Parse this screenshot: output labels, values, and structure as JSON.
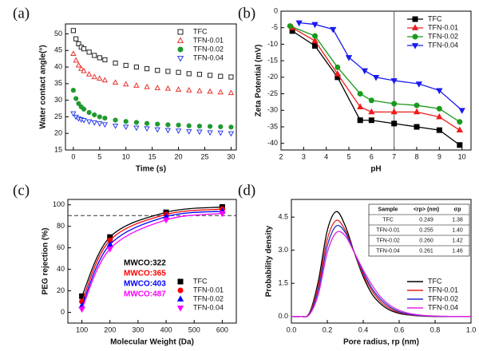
{
  "chart_data": [
    {
      "type": "scatter",
      "label": "(a)",
      "xlabel": "Time (s)",
      "ylabel": "Water contact angle(°)",
      "xlim": [
        -1.5,
        31
      ],
      "xticks": [
        0,
        5,
        10,
        15,
        20,
        25,
        30
      ],
      "ylim": [
        15,
        53
      ],
      "yticks": [
        15,
        20,
        25,
        30,
        35,
        40,
        45,
        50
      ],
      "legend": "upper right",
      "x": [
        0,
        0.5,
        1,
        1.5,
        2,
        3,
        4,
        5,
        6,
        8,
        10,
        12,
        14,
        16,
        18,
        20,
        22,
        24,
        26,
        28,
        30
      ],
      "series": [
        {
          "name": "TFC",
          "color": "#222222",
          "marker": "square-open",
          "values": [
            51,
            48.5,
            47,
            46,
            45.5,
            44.5,
            43.5,
            42.8,
            42.2,
            41.2,
            40.5,
            40,
            39.5,
            39,
            38.7,
            38.4,
            38,
            37.8,
            37.5,
            37.2,
            37
          ]
        },
        {
          "name": "TFN-0.01",
          "color": "#e8322b",
          "marker": "triangle-open",
          "values": [
            44,
            42,
            40.5,
            39.5,
            38.8,
            37.8,
            37,
            36.5,
            36,
            35.3,
            34.8,
            34.4,
            34,
            33.7,
            33.5,
            33.2,
            33,
            32.8,
            32.6,
            32.4,
            32.2
          ]
        },
        {
          "name": "TFN-0.02",
          "color": "#1f9a2e",
          "marker": "circle",
          "values": [
            33,
            30.5,
            29,
            28,
            27.3,
            26.3,
            25.6,
            25,
            24.6,
            24,
            23.6,
            23.3,
            23,
            22.8,
            22.6,
            22.5,
            22.3,
            22.2,
            22.1,
            22,
            21.9
          ]
        },
        {
          "name": "TFN-0.04",
          "color": "#2b3ee6",
          "marker": "triangle-down-open",
          "values": [
            26,
            25,
            24.5,
            24.2,
            24,
            23.6,
            23.3,
            23,
            22.7,
            22.3,
            22,
            21.7,
            21.5,
            21.2,
            21,
            20.8,
            20.6,
            20.5,
            20.3,
            20.2,
            20
          ]
        }
      ]
    },
    {
      "type": "line",
      "label": "(b)",
      "xlabel": "pH",
      "ylabel": "Zeta Potential (mV)",
      "xlim": [
        2,
        10.4
      ],
      "xticks": [
        2,
        3,
        4,
        5,
        6,
        7,
        8,
        9,
        10
      ],
      "ylim": [
        -42,
        0
      ],
      "yticks": [
        -40,
        -35,
        -30,
        -25,
        -20,
        -15,
        -10,
        -5,
        0
      ],
      "legend": "upper right",
      "vline": 7,
      "series": [
        {
          "name": "TFC",
          "color": "#000000",
          "marker": "square",
          "x": [
            2.5,
            3.5,
            4.5,
            5.5,
            6,
            7,
            8,
            9,
            9.9
          ],
          "values": [
            -6,
            -10.5,
            -20,
            -33,
            -33,
            -34,
            -35,
            -36,
            -40.5
          ]
        },
        {
          "name": "TFN-0.01",
          "color": "#ee1c1c",
          "marker": "triangle",
          "x": [
            2.5,
            3.5,
            4.5,
            5.5,
            6,
            7,
            8,
            9,
            9.9
          ],
          "values": [
            -5,
            -9,
            -19,
            -29,
            -30.5,
            -30.5,
            -30.5,
            -32,
            -36
          ]
        },
        {
          "name": "TFN-0.02",
          "color": "#1a9a1a",
          "marker": "circle",
          "x": [
            2.4,
            3.5,
            4.5,
            5.5,
            6,
            7,
            8,
            9,
            9.9
          ],
          "values": [
            -4.5,
            -7.5,
            -17,
            -25,
            -27,
            -28,
            -28.5,
            -29.5,
            -33.5
          ]
        },
        {
          "name": "TFN-0.04",
          "color": "#1a1aee",
          "marker": "triangle-down",
          "x": [
            2.8,
            3.5,
            4.3,
            5,
            5.7,
            6.2,
            7,
            8.1,
            9,
            10
          ],
          "values": [
            -3.5,
            -4,
            -5.5,
            -14,
            -18,
            -20,
            -21,
            -22,
            -24,
            -30
          ]
        }
      ]
    },
    {
      "type": "line",
      "label": "(c)",
      "xlabel": "Molecular Weight (Da)",
      "ylabel": "PEG rejection (%)",
      "smooth": true,
      "xlim": [
        50,
        650
      ],
      "xticks": [
        100,
        200,
        300,
        400,
        500,
        600
      ],
      "ylim": [
        -10,
        105
      ],
      "yticks": [
        0,
        20,
        40,
        60,
        80,
        100
      ],
      "legend": "lower right",
      "hline": 90,
      "x": [
        100,
        200,
        400,
        600
      ],
      "annotations": [
        {
          "text": "MWCO:322",
          "color": "#000000"
        },
        {
          "text": "MWCO:365",
          "color": "#ff0000"
        },
        {
          "text": "MWCO:403",
          "color": "#0000ff"
        },
        {
          "text": "MWCO:487",
          "color": "#ff00ff"
        }
      ],
      "series": [
        {
          "name": "TFC",
          "color": "#000000",
          "marker": "square",
          "values": [
            15,
            70,
            93,
            98
          ]
        },
        {
          "name": "TFN-0.01",
          "color": "#ff0000",
          "marker": "circle",
          "values": [
            10,
            67,
            91,
            96
          ]
        },
        {
          "name": "TFN-0.02",
          "color": "#0000ff",
          "marker": "triangle",
          "values": [
            6,
            63,
            89,
            94
          ]
        },
        {
          "name": "TFN-0.04",
          "color": "#ff00ff",
          "marker": "triangle-down",
          "values": [
            3,
            59,
            86,
            92
          ]
        }
      ]
    },
    {
      "type": "line",
      "label": "(d)",
      "xlabel": "Pore radius, rp (nm)",
      "ylabel": "Probability density",
      "smooth": true,
      "xlim": [
        0,
        1
      ],
      "xticks": [
        {
          "value": 0,
          "label": "0.0"
        },
        {
          "value": 0.2,
          "label": "0.2"
        },
        {
          "value": 0.4,
          "label": "0.4"
        },
        {
          "value": 0.6,
          "label": "0.6"
        },
        {
          "value": 0.8,
          "label": "0.8"
        },
        {
          "value": 1,
          "label": "1.0"
        }
      ],
      "ylim": [
        -0.3,
        5.3
      ],
      "yticks": [
        {
          "value": 0,
          "label": "0.0"
        },
        {
          "value": 1.5,
          "label": "1.5"
        },
        {
          "value": 3,
          "label": "3.0"
        },
        {
          "value": 4.5,
          "label": "4.5"
        }
      ],
      "legend": "lower right",
      "x": [
        0,
        0.05,
        0.1,
        0.15,
        0.2,
        0.25,
        0.3,
        0.35,
        0.4,
        0.45,
        0.5,
        0.55,
        0.6,
        0.65,
        0.7,
        0.75,
        0.8,
        0.85,
        0.9,
        0.95,
        1
      ],
      "table": {
        "columns": [
          "Sample",
          "<rp> (nm)",
          "σp"
        ],
        "rows": [
          [
            "TFC",
            "0.249",
            "1.38"
          ],
          [
            "TFN-0.01",
            "0.255",
            "1.40"
          ],
          [
            "TFN-0.02",
            "0.260",
            "1.42"
          ],
          [
            "TFN-0.04",
            "0.261",
            "1.46"
          ]
        ]
      },
      "series": [
        {
          "name": "TFC",
          "color": "#000000",
          "values": [
            0,
            0,
            0.15,
            1.6,
            3.9,
            4.75,
            4.1,
            2.9,
            1.8,
            1.0,
            0.55,
            0.28,
            0.14,
            0.07,
            0.03,
            0.01,
            0,
            0,
            0,
            0,
            0
          ]
        },
        {
          "name": "TFN-0.01",
          "color": "#e82020",
          "values": [
            0,
            0,
            0.12,
            1.4,
            3.5,
            4.35,
            3.9,
            2.9,
            1.9,
            1.15,
            0.65,
            0.35,
            0.18,
            0.09,
            0.04,
            0.02,
            0.01,
            0,
            0,
            0,
            0
          ]
        },
        {
          "name": "TFN-0.02",
          "color": "#2030c0",
          "values": [
            0,
            0,
            0.1,
            1.2,
            3.2,
            4.1,
            3.8,
            2.9,
            2.0,
            1.25,
            0.75,
            0.42,
            0.22,
            0.11,
            0.05,
            0.02,
            0.01,
            0,
            0,
            0,
            0
          ]
        },
        {
          "name": "TFN-0.04",
          "color": "#e020e0",
          "values": [
            0,
            0,
            0.08,
            1.0,
            2.9,
            3.8,
            3.65,
            2.9,
            2.1,
            1.4,
            0.85,
            0.5,
            0.28,
            0.15,
            0.08,
            0.04,
            0.02,
            0.01,
            0,
            0,
            0
          ]
        }
      ]
    }
  ]
}
